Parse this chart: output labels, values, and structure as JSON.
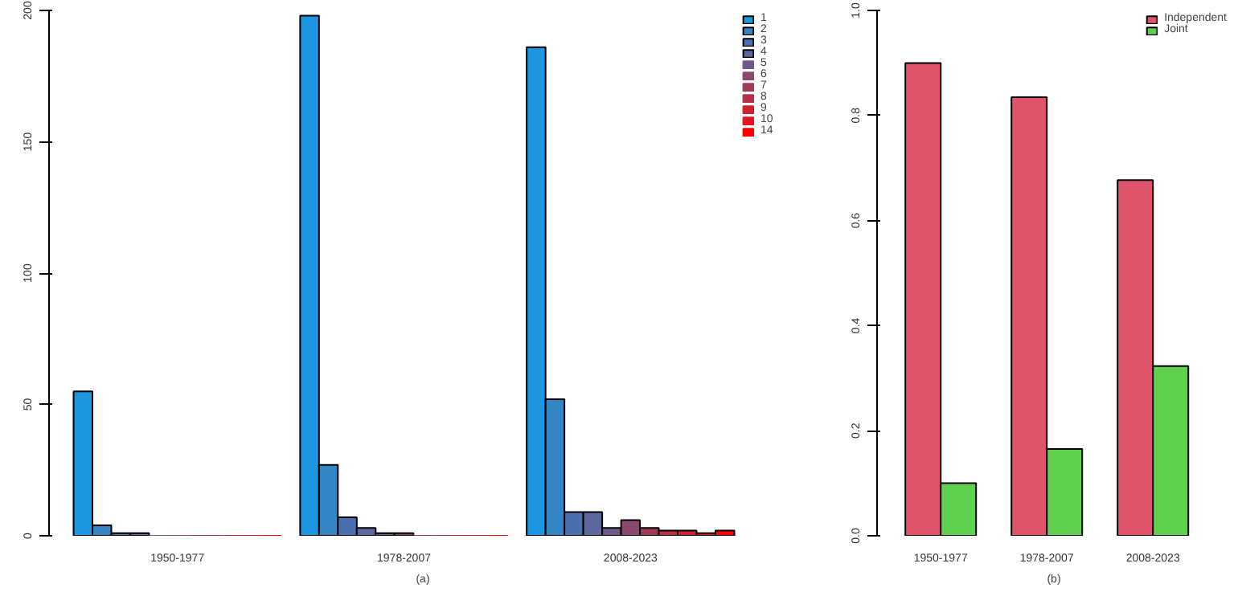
{
  "chart_data": [
    {
      "type": "bar",
      "categories": [
        "1950-1977",
        "1978-2007",
        "2008-2023"
      ],
      "xlabel": "(a)",
      "ylim": [
        0,
        200
      ],
      "yticks": [
        0,
        50,
        100,
        150,
        200
      ],
      "grid": false,
      "legend": "top right",
      "series": [
        {
          "name": "1",
          "color": "#1c96e0",
          "values": [
            55,
            198,
            186
          ]
        },
        {
          "name": "2",
          "color": "#3385c6",
          "values": [
            4,
            27,
            52
          ]
        },
        {
          "name": "3",
          "color": "#4a70b0",
          "values": [
            1,
            7,
            9
          ]
        },
        {
          "name": "4",
          "color": "#5d68a0",
          "values": [
            1,
            3,
            9
          ]
        },
        {
          "name": "5",
          "color": "#6e5a8a",
          "values": [
            0,
            1,
            3
          ]
        },
        {
          "name": "6",
          "color": "#8a4a70",
          "values": [
            0,
            1,
            6
          ]
        },
        {
          "name": "7",
          "color": "#a03a58",
          "values": [
            0,
            0,
            3
          ]
        },
        {
          "name": "8",
          "color": "#b83048",
          "values": [
            0,
            0,
            2
          ]
        },
        {
          "name": "9",
          "color": "#d02030",
          "values": [
            0,
            0,
            2
          ]
        },
        {
          "name": "10",
          "color": "#e01520",
          "values": [
            0,
            0,
            1
          ]
        },
        {
          "name": "14",
          "color": "#ff0000",
          "values": [
            0,
            0,
            2
          ]
        }
      ]
    },
    {
      "type": "bar",
      "categories": [
        "1950-1977",
        "1978-2007",
        "2008-2023"
      ],
      "xlabel": "(b)",
      "ylim": [
        0,
        1
      ],
      "yticks": [
        {
          "value": 0,
          "label": "0.0"
        },
        0.2,
        0.4,
        0.6,
        0.8,
        {
          "value": 1,
          "label": "1.0"
        }
      ],
      "grid": false,
      "legend": "top right",
      "series": [
        {
          "name": "Independent",
          "color": "#df536b",
          "values": [
            0.9,
            0.835,
            0.677
          ]
        },
        {
          "name": "Joint",
          "color": "#61d04f",
          "values": [
            0.1,
            0.165,
            0.323
          ]
        }
      ]
    }
  ]
}
